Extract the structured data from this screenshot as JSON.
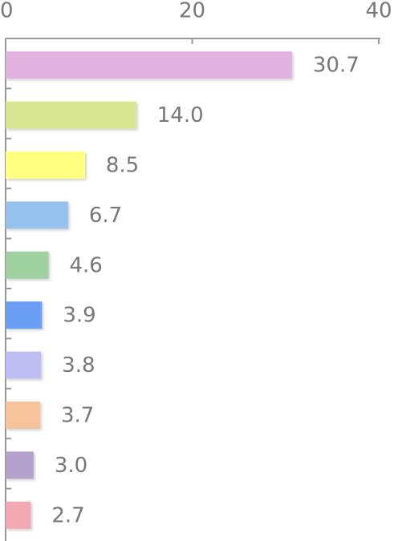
{
  "chart_data": {
    "type": "bar",
    "orientation": "horizontal",
    "categories": [
      null,
      null,
      null,
      null,
      null,
      null,
      null,
      null,
      null,
      null
    ],
    "values": [
      30.7,
      14.0,
      8.5,
      6.7,
      4.6,
      3.9,
      3.8,
      3.7,
      3.0,
      2.7
    ],
    "value_labels": [
      "30.7",
      "14.0",
      "8.5",
      "6.7",
      "4.6",
      "3.9",
      "3.8",
      "3.7",
      "3.0",
      "2.7"
    ],
    "colors": [
      "#e2b2e0",
      "#d9e690",
      "#ffff80",
      "#96c3ee",
      "#9ed19f",
      "#6a9ff5",
      "#bdbdf3",
      "#f7c39a",
      "#b2a2cb",
      "#f2a9b4"
    ],
    "xlim": [
      0,
      40
    ],
    "xticks": [
      0,
      20,
      40
    ],
    "grid": false
  }
}
